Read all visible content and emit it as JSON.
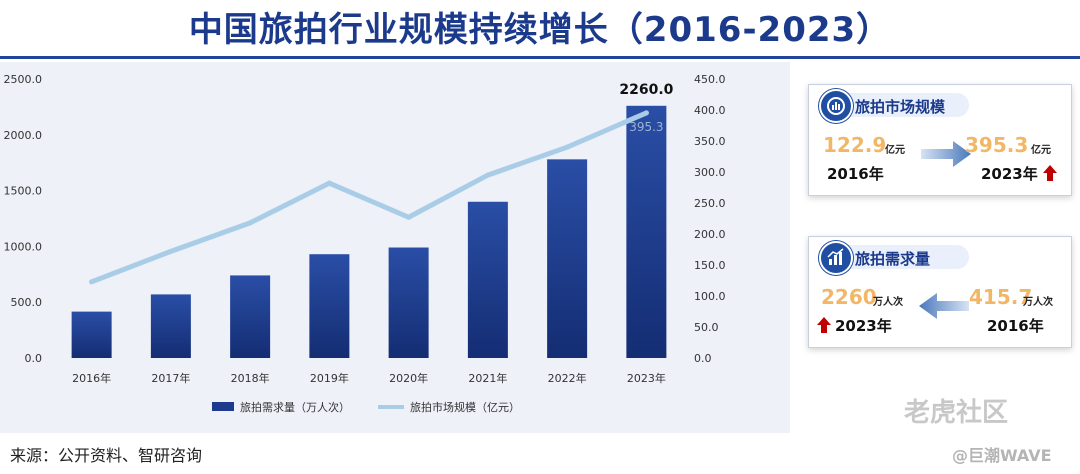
{
  "title": "中国旅拍行业规模持续增长（2016-2023）",
  "source": "来源：公开资料、智研咨询",
  "watermark": {
    "main": "老虎社区",
    "sub": "@巨潮WAVE"
  },
  "colors": {
    "bar": "#1c3b8f",
    "line": "#a9cde6",
    "title": "#1b3a8c",
    "accent": "#f2b766",
    "arrow_up": "#c00000"
  },
  "cards": {
    "market": {
      "title": "旅拍市场规模",
      "left_value": "122.9",
      "left_unit": "亿元",
      "left_year": "2016年",
      "right_value": "395.3",
      "right_unit": "亿元",
      "right_year": "2023年"
    },
    "demand": {
      "title": "旅拍需求量",
      "left_value": "2260",
      "left_unit": "万人次",
      "left_year": "2023年",
      "right_value": "415.7",
      "right_unit": "万人次",
      "right_year": "2016年"
    }
  },
  "chart_data": {
    "type": "bar",
    "categories": [
      "2016年",
      "2017年",
      "2018年",
      "2019年",
      "2020年",
      "2021年",
      "2022年",
      "2023年"
    ],
    "series": [
      {
        "name": "旅拍需求量（万人次）",
        "type": "bar",
        "axis": "left",
        "values": [
          415.7,
          570,
          740,
          930,
          990,
          1400,
          1780,
          2260
        ]
      },
      {
        "name": "旅拍市场规模（亿元）",
        "type": "line",
        "axis": "right",
        "values": [
          122.9,
          172,
          218,
          282,
          227,
          295,
          340,
          395.3
        ]
      }
    ],
    "y_left": {
      "min": 0,
      "max": 2500,
      "ticks": [
        "0.0",
        "500.0",
        "1000.0",
        "1500.0",
        "2000.0",
        "2500.0"
      ]
    },
    "y_right": {
      "min": 0,
      "max": 450,
      "ticks": [
        "0.0",
        "50.0",
        "100.0",
        "150.0",
        "200.0",
        "250.0",
        "300.0",
        "350.0",
        "400.0",
        "450.0"
      ]
    },
    "data_labels": {
      "bar_last": "2260.0",
      "line_last": "395.3"
    },
    "legend_position": "bottom",
    "grid": false
  }
}
